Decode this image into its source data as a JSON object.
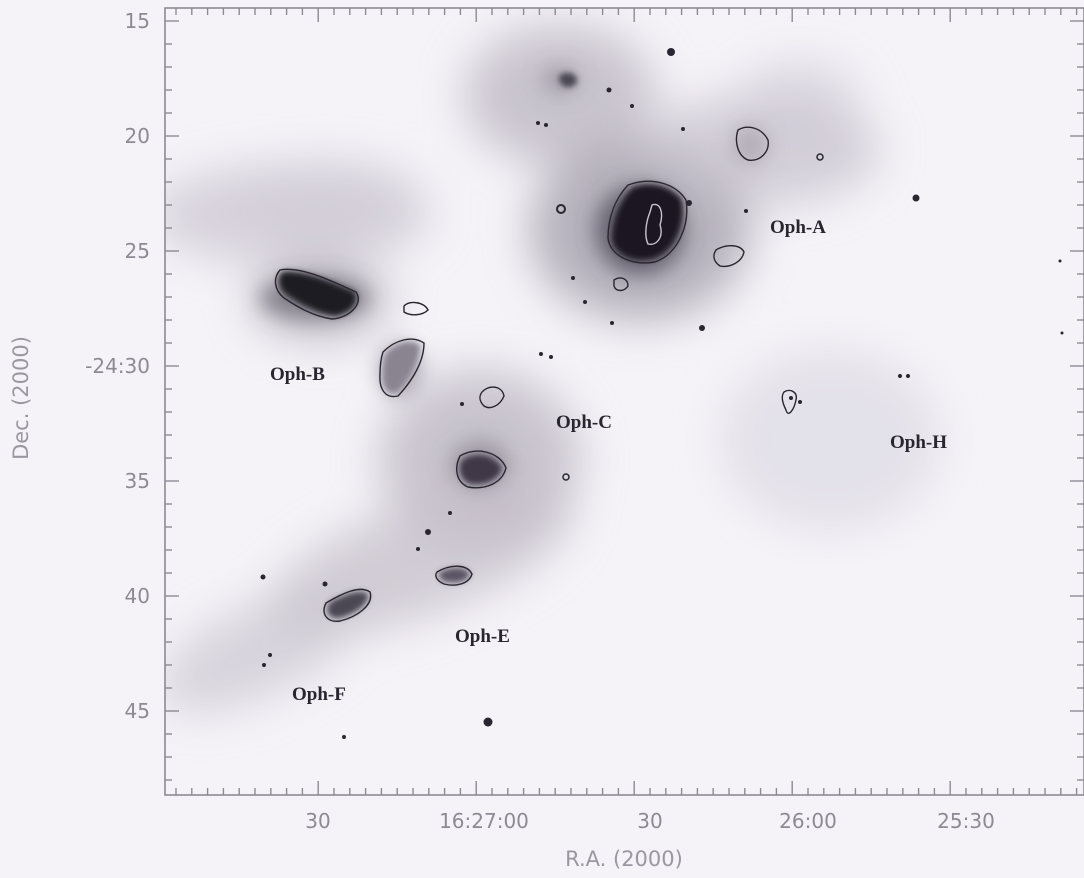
{
  "figure": {
    "x_axis": {
      "title": "R.A. (2000)",
      "ticks": [
        "30",
        "16:27:00",
        "30",
        "26:00",
        "25:30"
      ]
    },
    "y_axis": {
      "title": "Dec. (2000)",
      "ticks": [
        "15",
        "20",
        "25",
        "-24:30",
        "35",
        "40",
        "45"
      ]
    },
    "regions": [
      {
        "label": "Oph-A"
      },
      {
        "label": "Oph-B"
      },
      {
        "label": "Oph-C"
      },
      {
        "label": "Oph-E"
      },
      {
        "label": "Oph-F"
      },
      {
        "label": "Oph-H"
      }
    ],
    "colors": {
      "background": "#f6f3f8",
      "frame": "#8d8a93",
      "emission_dark": "#1a1620",
      "emission_light": "#b9b5c0"
    }
  }
}
